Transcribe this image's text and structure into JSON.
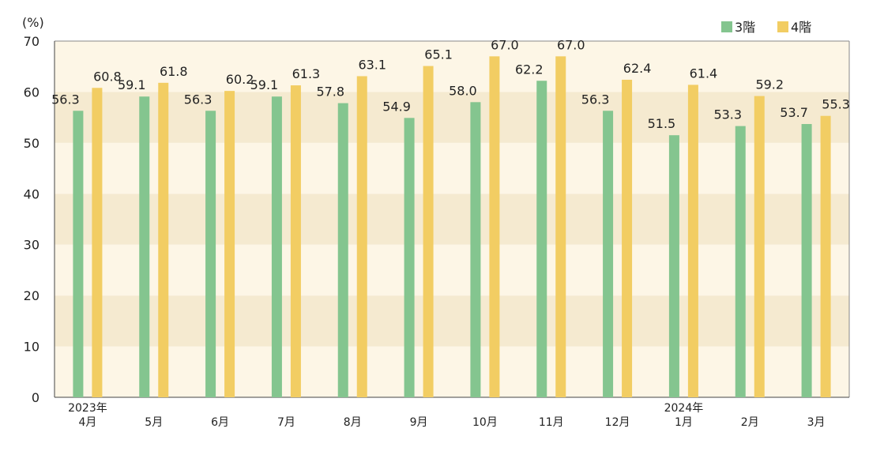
{
  "chart_data": {
    "type": "bar",
    "ylabel": "(%)",
    "ylim": [
      0,
      70
    ],
    "yticks": [
      0,
      10,
      20,
      30,
      40,
      50,
      60,
      70
    ],
    "grid": "alternating bands",
    "legend_position": "top-right",
    "categories": [
      {
        "top": "2023年",
        "month": "4月"
      },
      {
        "top": "",
        "month": "5月"
      },
      {
        "top": "",
        "month": "6月"
      },
      {
        "top": "",
        "month": "7月"
      },
      {
        "top": "",
        "month": "8月"
      },
      {
        "top": "",
        "month": "9月"
      },
      {
        "top": "",
        "month": "10月"
      },
      {
        "top": "",
        "month": "11月"
      },
      {
        "top": "",
        "month": "12月"
      },
      {
        "top": "2024年",
        "month": "1月"
      },
      {
        "top": "",
        "month": "2月"
      },
      {
        "top": "",
        "month": "3月"
      }
    ],
    "series": [
      {
        "name": "3階",
        "color": "#84c58f",
        "values": [
          56.3,
          59.1,
          56.3,
          59.1,
          57.8,
          54.9,
          58.0,
          62.2,
          56.3,
          51.5,
          53.3,
          53.7
        ],
        "labels": [
          "56.3",
          "59.1",
          "56.3",
          "59.1",
          "57.8",
          "54.9",
          "58.0",
          "62.2",
          "56.3",
          "51.5",
          "53.3",
          "53.7"
        ]
      },
      {
        "name": "4階",
        "color": "#f2cd63",
        "values": [
          60.8,
          61.8,
          60.2,
          61.3,
          63.1,
          65.1,
          67.0,
          67.0,
          62.4,
          61.4,
          59.2,
          55.3
        ],
        "labels": [
          "60.8",
          "61.8",
          "60.2",
          "61.3",
          "63.1",
          "65.1",
          "67.0",
          "67.0",
          "62.4",
          "61.4",
          "59.2",
          "55.3"
        ]
      }
    ],
    "band_colors": [
      "#fdf6e6",
      "#f5ead0"
    ]
  }
}
